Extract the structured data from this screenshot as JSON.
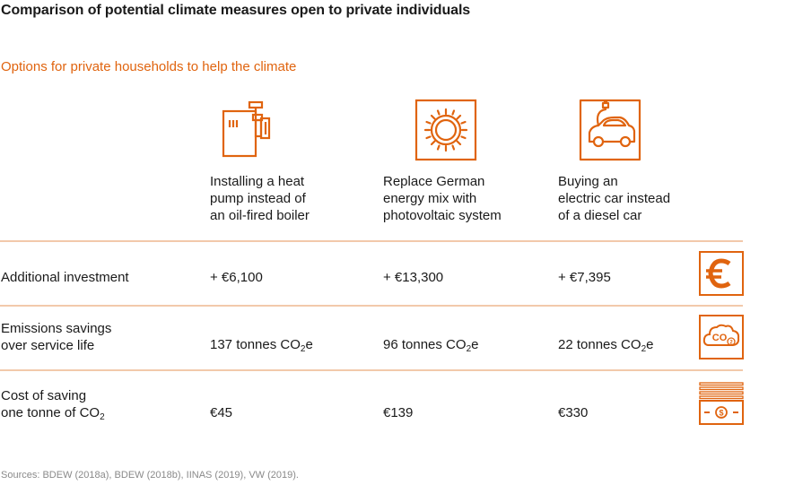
{
  "title": "Comparison of potential climate measures open to private individuals",
  "subtitle": "Options for private households to help the climate",
  "colors": {
    "accent": "#e0640f",
    "rule": "#f2c9ab",
    "text": "#1a1a1a",
    "muted": "#8a8a8a"
  },
  "options": [
    {
      "icon": "heat-pump-icon",
      "line1": "Installing a heat",
      "line2": "pump instead of",
      "line3": "an oil-fired boiler"
    },
    {
      "icon": "sun-icon",
      "line1": "Replace German",
      "line2": "energy mix with",
      "line3": "photovoltaic system"
    },
    {
      "icon": "electric-car-icon",
      "line1": "Buying an",
      "line2": "electric car instead",
      "line3": "of a diesel car"
    }
  ],
  "rows": [
    {
      "label1": "Additional investment",
      "label2": "",
      "values": [
        "+ €6,100",
        "+ €13,300",
        "+ €7,395"
      ],
      "icon": "euro-icon"
    },
    {
      "label1": "Emissions savings",
      "label2": "over service life",
      "values": [
        "137 tonnes CO",
        "96 tonnes CO",
        "22 tonnes CO"
      ],
      "value_sub": "2",
      "value_suffix": "e",
      "icon": "co2-cloud-icon"
    },
    {
      "label1": "Cost of saving",
      "label2": "one tonne of CO",
      "label2_sub": "2",
      "values": [
        "€45",
        "€139",
        "€330"
      ],
      "icon": "banknote-icon"
    }
  ],
  "source": "Sources: BDEW (2018a), BDEW (2018b), IINAS (2019), VW (2019)."
}
